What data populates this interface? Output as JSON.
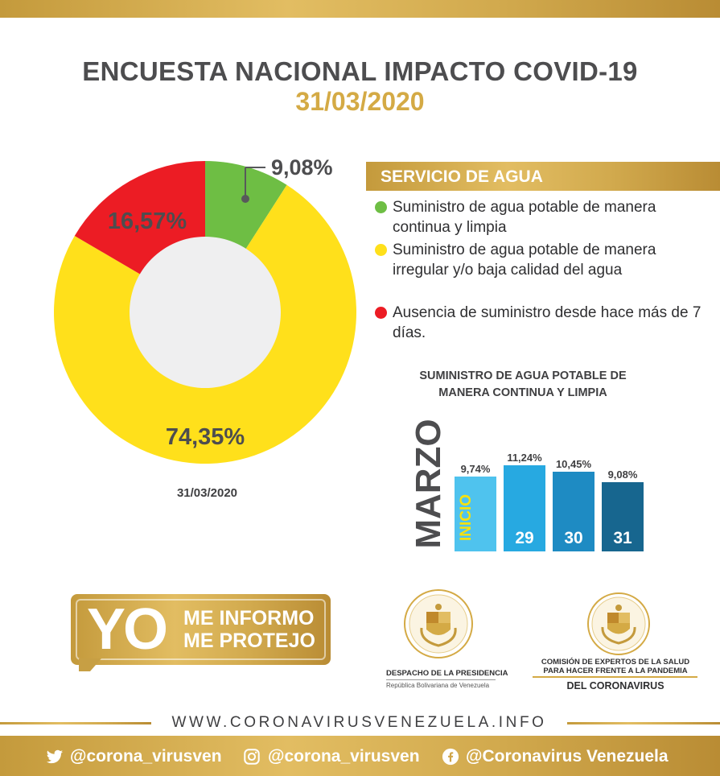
{
  "header": {
    "title": "ENCUESTA NACIONAL IMPACTO COVID-19",
    "date": "31/03/2020"
  },
  "colors": {
    "gold": "#d4aa45",
    "green": "#6ebe44",
    "yellow": "#ffe01b",
    "red": "#ec1c24",
    "donut_hole": "#efeff0",
    "bar_light": "#4fc3ee",
    "bar_mid": "#27a9e1",
    "bar_steel": "#1e8bc3",
    "bar_dark": "#17668f"
  },
  "legend": {
    "title": "SERVICIO DE AGUA",
    "items": [
      {
        "text": "Suministro de agua potable de manera continua y limpia",
        "color": "#6ebe44"
      },
      {
        "text": "Suministro de agua potable de manera irregular y/o baja calidad del agua",
        "color": "#ffe01b"
      },
      {
        "text": "Ausencia de suministro desde hace más de 7 días.",
        "color": "#ec1c24"
      }
    ]
  },
  "chart_data": [
    {
      "type": "pie",
      "title": "",
      "caption": "31/03/2020",
      "slices": [
        {
          "name": "Suministro de agua potable de manera continua y limpia",
          "label": "9,08%",
          "value": 9.08,
          "color": "#6ebe44"
        },
        {
          "name": "Suministro de agua potable de manera irregular y/o baja calidad del agua",
          "label": "74,35%",
          "value": 74.35,
          "color": "#ffe01b"
        },
        {
          "name": "Ausencia de suministro desde hace más de 7 días.",
          "label": "16,57%",
          "value": 16.57,
          "color": "#ec1c24"
        }
      ]
    },
    {
      "type": "bar",
      "title": "SUMINISTRO DE AGUA POTABLE DE MANERA CONTINUA Y LIMPIA",
      "group_label": "MARZO",
      "categories": [
        "INICIO",
        "29",
        "30",
        "31"
      ],
      "values": [
        9.74,
        11.24,
        10.45,
        9.08
      ],
      "value_labels": [
        "9,74%",
        "11,24%",
        "10,45%",
        "9,08%"
      ],
      "colors": [
        "#4fc3ee",
        "#27a9e1",
        "#1e8bc3",
        "#17668f"
      ]
    }
  ],
  "campaign": {
    "big": "YO",
    "line1": "ME INFORMO",
    "line2": "ME PROTEJO"
  },
  "orgs": {
    "presidency_line1": "DESPACHO DE LA PRESIDENCIA",
    "presidency_line2": "República Bolivariana de Venezuela",
    "commission_line1": "COMISIÓN DE EXPERTOS DE LA SALUD",
    "commission_line2": "PARA HACER FRENTE A LA PANDEMIA",
    "commission_line3": "DEL CORONAVIRUS"
  },
  "footer": {
    "website": "WWW.CORONAVIRUSVENEZUELA.INFO",
    "twitter": "@corona_virusven",
    "instagram": "@corona_virusven",
    "facebook": "@Coronavirus Venezuela",
    "icons": [
      "twitter-icon",
      "instagram-icon",
      "facebook-icon"
    ]
  }
}
